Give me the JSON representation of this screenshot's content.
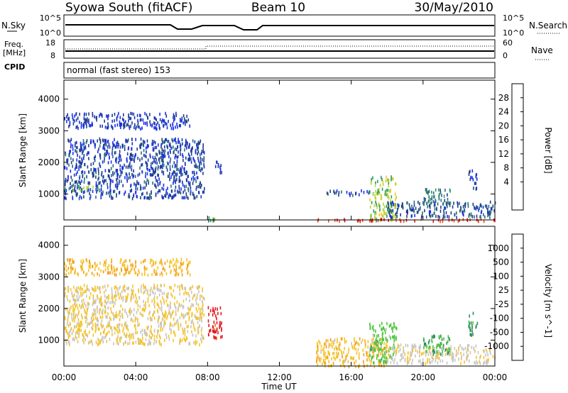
{
  "header": {
    "station": "Syowa South (fitACF)",
    "beam": "Beam 10",
    "date": "30/May/2010"
  },
  "top_panels": {
    "nsky": {
      "label": "N.Sky",
      "ticks": [
        "10^5",
        "10^0"
      ],
      "right_label": "N.Search",
      "right_ticks": [
        "10^5",
        "10^0"
      ]
    },
    "freq": {
      "label1": "Freq.",
      "label2": "[MHz]",
      "ticks": [
        "18",
        "8"
      ],
      "right_label": "Nave",
      "right_ticks": [
        "60",
        "0"
      ]
    },
    "cpid": {
      "label": "CPID",
      "mode_text": "normal (fast stereo) 153"
    }
  },
  "x_axis": {
    "label": "Time UT",
    "ticks": [
      "00:00",
      "04:00",
      "08:00",
      "12:00",
      "16:00",
      "20:00",
      "00:00"
    ]
  },
  "power_colorbar": {
    "label": "Power [dB]",
    "ticks": [
      "28",
      "24",
      "20",
      "16",
      "12",
      "8",
      "4"
    ],
    "colors": [
      "#e4191c",
      "#f2521a",
      "#f39a1b",
      "#f3c823",
      "#b6d63b",
      "#2e9a64",
      "#2b6f78",
      "#1f3f8a",
      "#1b2ff0"
    ]
  },
  "velocity_colorbar": {
    "label": "Velocity [m s^-1]",
    "ticks": [
      "1000",
      "500",
      "100",
      "25",
      "-25",
      "-100",
      "-500",
      "-1000"
    ],
    "colors": [
      "#1e3ce0",
      "#2a4e9c",
      "#2f8f5c",
      "#4cc53a",
      "#c6c6c6",
      "#f5c329",
      "#f39a1b",
      "#f06a1a",
      "#e4191c"
    ]
  },
  "chart_data": [
    {
      "type": "heatmap",
      "title": "Power",
      "xlabel": "Time UT",
      "ylabel": "Slant Range [km]",
      "xlim": [
        0,
        24
      ],
      "ylim": [
        180,
        4600
      ],
      "yticks": [
        "1000",
        "2000",
        "3000",
        "4000"
      ],
      "clim": [
        3,
        30
      ],
      "regions": [
        {
          "t0": 0.0,
          "t1": 7.8,
          "r0": 900,
          "r1": 2800,
          "level": 7
        },
        {
          "t0": 0.0,
          "t1": 2.0,
          "r0": 1150,
          "r1": 1300,
          "level": 15
        },
        {
          "t0": 0.0,
          "t1": 7.0,
          "r0": 3100,
          "r1": 3600,
          "level": 6
        },
        {
          "t0": 8.0,
          "t1": 8.4,
          "r0": 180,
          "r1": 300,
          "level": 14
        },
        {
          "t0": 8.4,
          "t1": 8.8,
          "r0": 1700,
          "r1": 2100,
          "level": 6
        },
        {
          "t0": 14.5,
          "t1": 17.0,
          "r0": 1000,
          "r1": 1150,
          "level": 7
        },
        {
          "t0": 17.0,
          "t1": 18.5,
          "r0": 200,
          "r1": 1600,
          "level": 16
        },
        {
          "t0": 14.0,
          "t1": 24.0,
          "r0": 180,
          "r1": 260,
          "level": 27
        },
        {
          "t0": 18.0,
          "t1": 24.0,
          "r0": 300,
          "r1": 800,
          "level": 8
        },
        {
          "t0": 20.0,
          "t1": 21.5,
          "r0": 700,
          "r1": 1200,
          "level": 11
        },
        {
          "t0": 22.5,
          "t1": 23.0,
          "r0": 1200,
          "r1": 1800,
          "level": 6
        }
      ]
    },
    {
      "type": "heatmap",
      "title": "Velocity",
      "xlabel": "Time UT",
      "ylabel": "Slant Range [km]",
      "xlim": [
        0,
        24
      ],
      "ylim": [
        180,
        4600
      ],
      "yticks": [
        "1000",
        "2000",
        "3000",
        "4000"
      ],
      "clim": [
        -1000,
        1000
      ],
      "regions": [
        {
          "t0": 0.0,
          "t1": 7.8,
          "r0": 900,
          "r1": 2800,
          "level": -150
        },
        {
          "t0": 0.0,
          "t1": 7.0,
          "r0": 3100,
          "r1": 3600,
          "level": -300
        },
        {
          "t0": 8.0,
          "t1": 8.8,
          "r0": 1100,
          "r1": 2100,
          "level": -900
        },
        {
          "t0": 14.0,
          "t1": 18.0,
          "r0": 200,
          "r1": 1100,
          "level": -250
        },
        {
          "t0": 17.0,
          "t1": 18.5,
          "r0": 300,
          "r1": 1600,
          "level": 200
        },
        {
          "t0": 18.0,
          "t1": 24.0,
          "r0": 300,
          "r1": 900,
          "level": -50
        },
        {
          "t0": 20.0,
          "t1": 21.5,
          "r0": 600,
          "r1": 1200,
          "level": 300
        },
        {
          "t0": 22.5,
          "t1": 23.0,
          "r0": 1200,
          "r1": 1900,
          "level": 400
        }
      ]
    }
  ]
}
